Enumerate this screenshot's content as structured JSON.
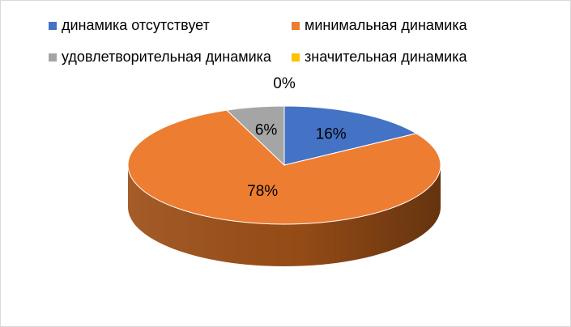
{
  "chart_data": {
    "type": "pie",
    "style": "3d",
    "legend_position": "top",
    "categories": [
      "динамика отсутствует",
      "минимальная динамика",
      "удовлетворительная динамика",
      "значительная динамика"
    ],
    "values": [
      16,
      78,
      6,
      0
    ],
    "data_labels": [
      "16%",
      "78%",
      "6%",
      "0%"
    ],
    "colors": [
      "#4472c4",
      "#ed7d31",
      "#a5a5a5",
      "#ffc000"
    ],
    "side_colors": [
      "#2e4f88",
      "#9c4f17",
      "#6f6f6f",
      "#b38700"
    ]
  }
}
